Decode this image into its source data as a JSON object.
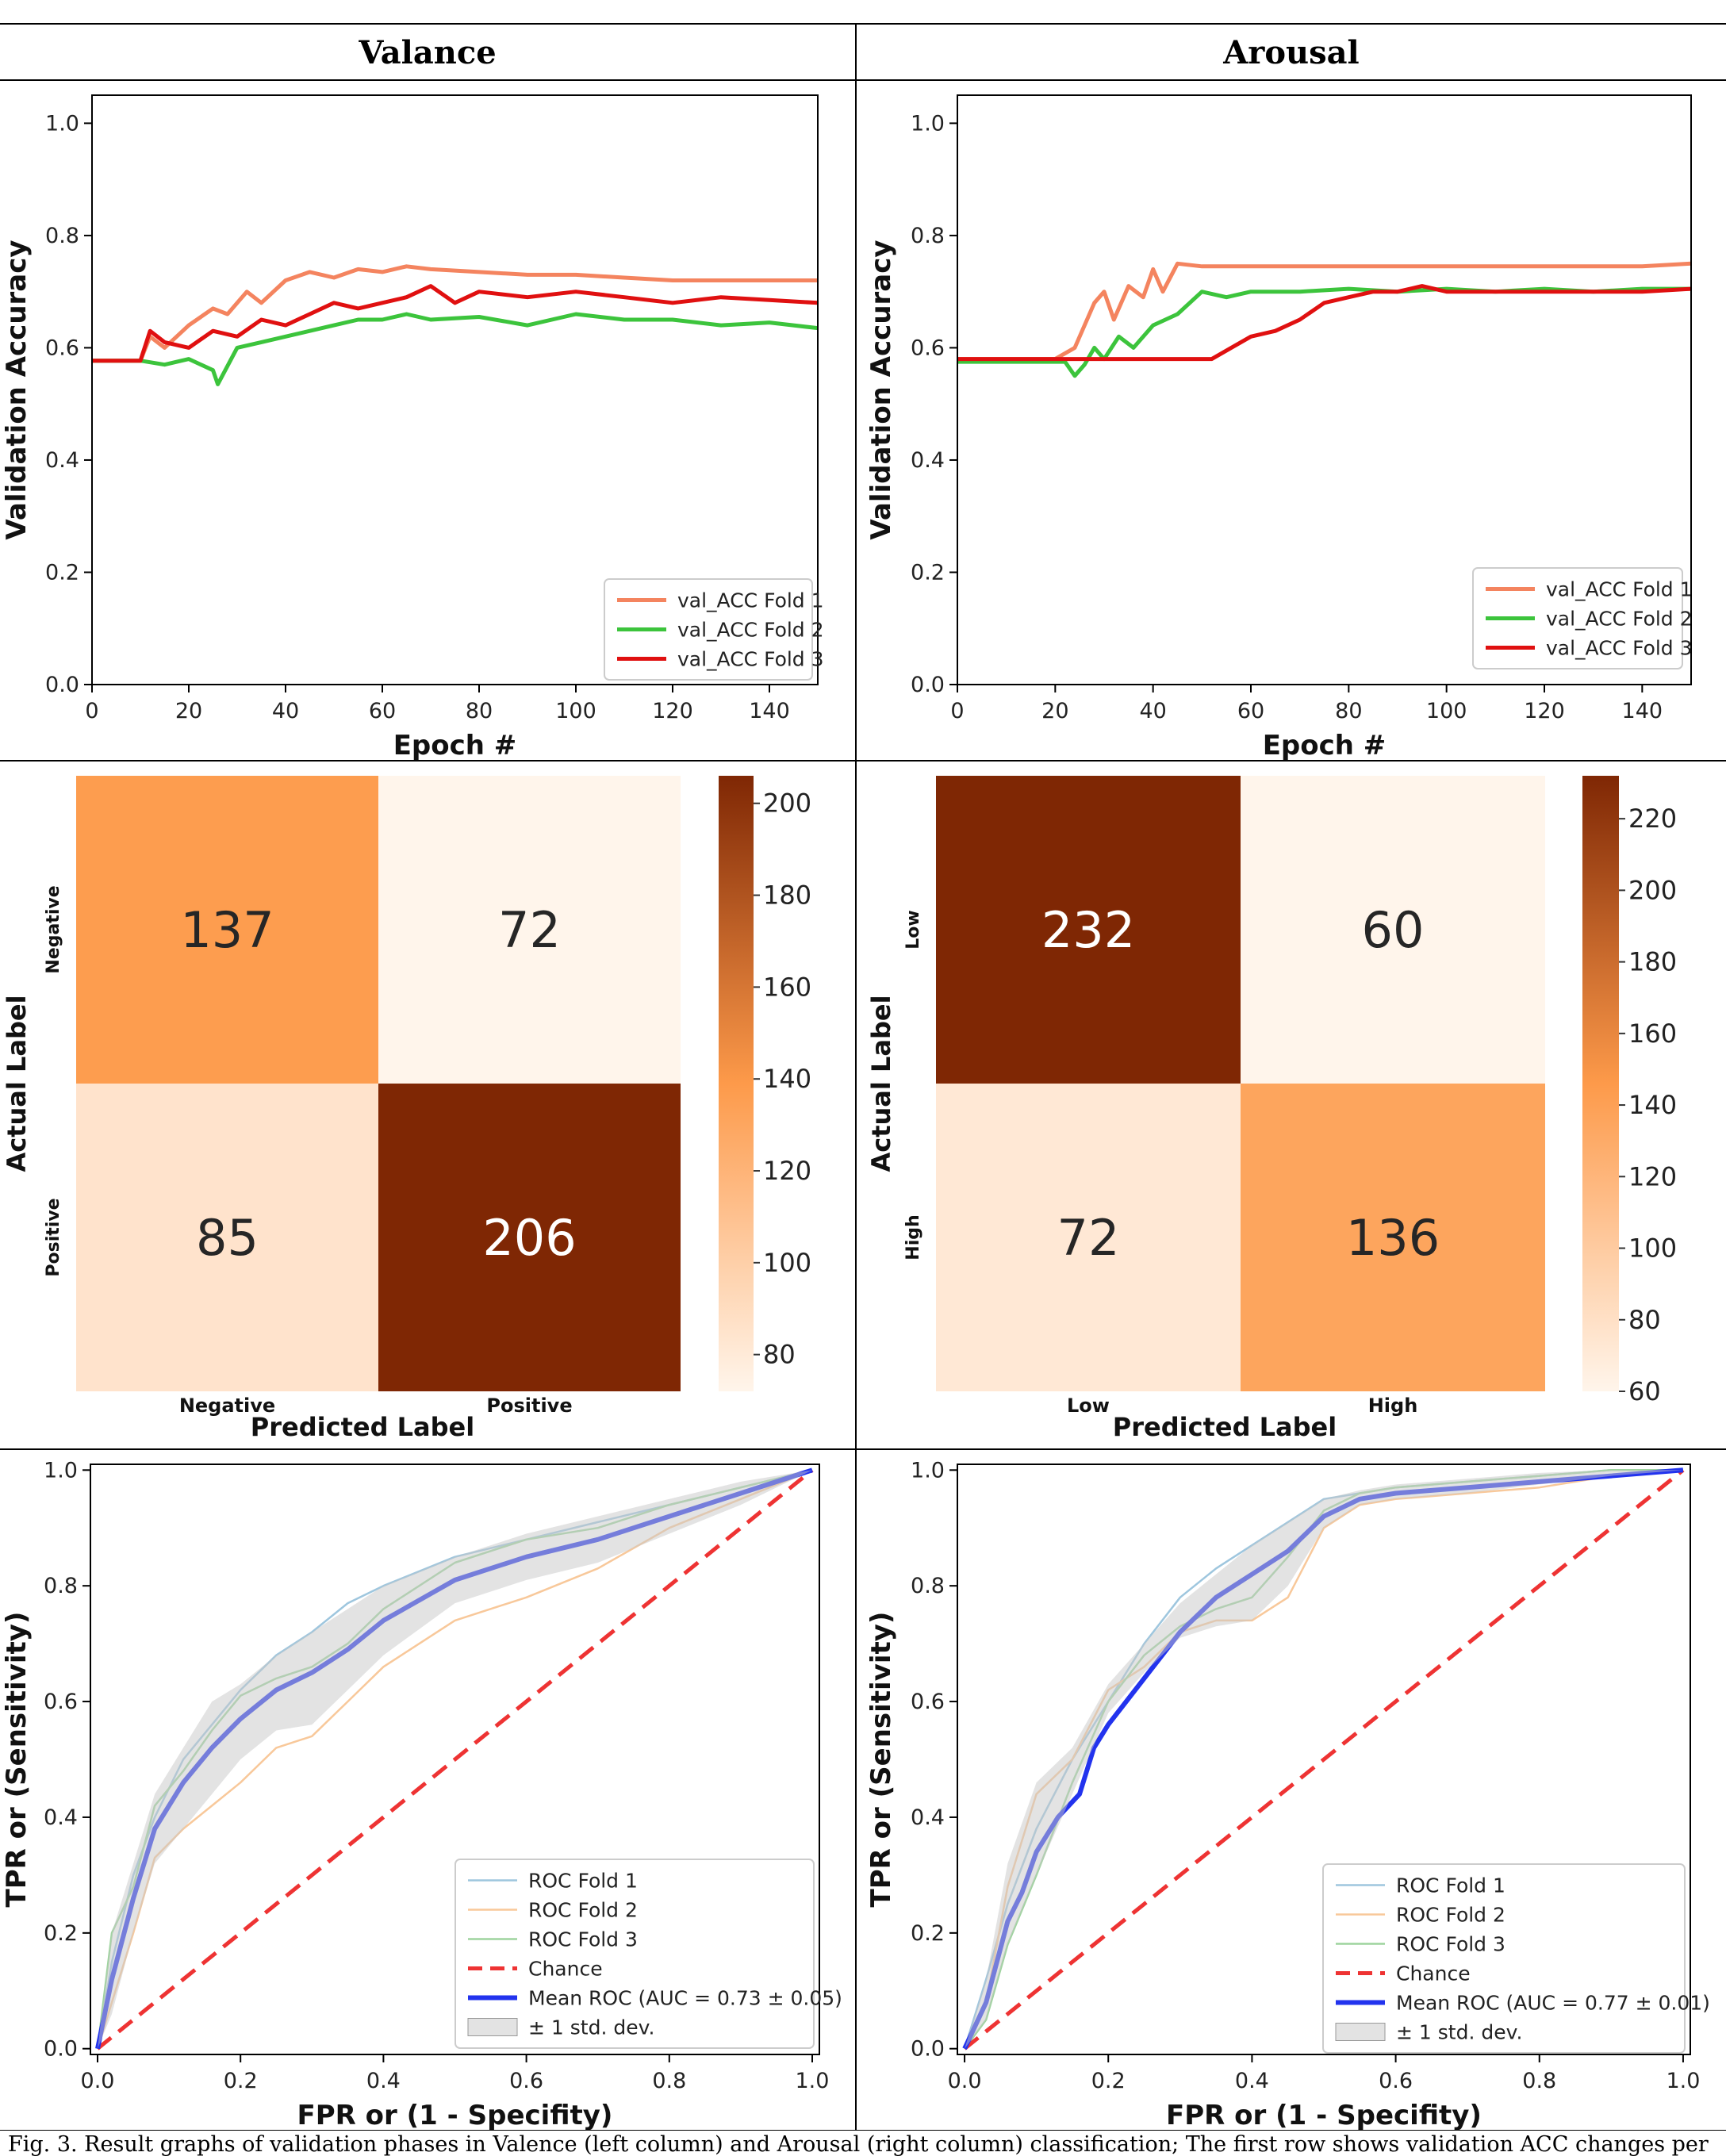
{
  "headers": {
    "left": "Valance",
    "right": "Arousal"
  },
  "caption": "Fig. 3.  Result graphs of validation phases in Valence (left column) and Arousal (right column) classification; The first row shows validation ACC changes per",
  "colors": {
    "fold1": "#f4845f",
    "fold2": "#3cc43c",
    "fold3": "#e01010",
    "cm_low": "#fff5eb",
    "cm_mid": "#fd9a4a",
    "cm_high": "#7f2704",
    "roc_fold1": "#9ec6de",
    "roc_fold2": "#f8c89a",
    "roc_fold3": "#9ed49e",
    "chance": "#ee3333",
    "mean_roc": "#2233ee",
    "band": "#c8c8c8"
  },
  "chart_data": [
    {
      "id": "valence-acc",
      "type": "line",
      "ylabel": "Validation Accuracy",
      "xlabel": "Epoch #",
      "xlim": [
        0,
        150
      ],
      "ylim": [
        0.0,
        1.05
      ],
      "xticks": [
        0,
        20,
        40,
        60,
        80,
        100,
        120,
        140
      ],
      "yticks": [
        0.0,
        0.2,
        0.4,
        0.6,
        0.8,
        1.0
      ],
      "legend_position": "lower right",
      "series": [
        {
          "name": "val_ACC Fold 1",
          "color_key": "fold1",
          "x": [
            0,
            10,
            12,
            15,
            20,
            25,
            28,
            32,
            35,
            40,
            45,
            50,
            55,
            60,
            65,
            70,
            80,
            90,
            100,
            110,
            120,
            130,
            140,
            150
          ],
          "y": [
            0.577,
            0.577,
            0.62,
            0.6,
            0.64,
            0.67,
            0.66,
            0.7,
            0.68,
            0.72,
            0.735,
            0.725,
            0.74,
            0.735,
            0.745,
            0.74,
            0.735,
            0.73,
            0.73,
            0.725,
            0.72,
            0.72,
            0.72,
            0.72
          ]
        },
        {
          "name": "val_ACC Fold 2",
          "color_key": "fold2",
          "x": [
            0,
            10,
            15,
            20,
            25,
            26,
            30,
            35,
            40,
            45,
            50,
            55,
            60,
            65,
            70,
            80,
            90,
            100,
            110,
            120,
            130,
            140,
            150
          ],
          "y": [
            0.577,
            0.577,
            0.57,
            0.58,
            0.56,
            0.535,
            0.6,
            0.61,
            0.62,
            0.63,
            0.64,
            0.65,
            0.65,
            0.66,
            0.65,
            0.655,
            0.64,
            0.66,
            0.65,
            0.65,
            0.64,
            0.645,
            0.635
          ]
        },
        {
          "name": "val_ACC Fold 3",
          "color_key": "fold3",
          "x": [
            0,
            10,
            12,
            15,
            20,
            25,
            30,
            35,
            40,
            45,
            50,
            55,
            60,
            65,
            70,
            75,
            80,
            90,
            100,
            110,
            120,
            130,
            140,
            150
          ],
          "y": [
            0.577,
            0.577,
            0.63,
            0.61,
            0.6,
            0.63,
            0.62,
            0.65,
            0.64,
            0.66,
            0.68,
            0.67,
            0.68,
            0.69,
            0.71,
            0.68,
            0.7,
            0.69,
            0.7,
            0.69,
            0.68,
            0.69,
            0.685,
            0.68
          ]
        }
      ]
    },
    {
      "id": "arousal-acc",
      "type": "line",
      "ylabel": "Validation Accuracy",
      "xlabel": "Epoch #",
      "xlim": [
        0,
        150
      ],
      "ylim": [
        0.0,
        1.05
      ],
      "xticks": [
        0,
        20,
        40,
        60,
        80,
        100,
        120,
        140
      ],
      "yticks": [
        0.0,
        0.2,
        0.4,
        0.6,
        0.8,
        1.0
      ],
      "legend_position": "lower right",
      "series": [
        {
          "name": "val_ACC Fold 1",
          "color_key": "fold1",
          "x": [
            0,
            20,
            24,
            28,
            30,
            32,
            35,
            38,
            40,
            42,
            45,
            50,
            55,
            60,
            70,
            80,
            90,
            100,
            110,
            120,
            130,
            140,
            150
          ],
          "y": [
            0.58,
            0.58,
            0.6,
            0.68,
            0.7,
            0.65,
            0.71,
            0.69,
            0.74,
            0.7,
            0.75,
            0.745,
            0.745,
            0.745,
            0.745,
            0.745,
            0.745,
            0.745,
            0.745,
            0.745,
            0.745,
            0.745,
            0.75
          ]
        },
        {
          "name": "val_ACC Fold 2",
          "color_key": "fold2",
          "x": [
            0,
            22,
            24,
            26,
            28,
            30,
            33,
            36,
            40,
            45,
            50,
            55,
            60,
            70,
            80,
            90,
            100,
            110,
            120,
            130,
            140,
            150
          ],
          "y": [
            0.575,
            0.575,
            0.55,
            0.57,
            0.6,
            0.58,
            0.62,
            0.6,
            0.64,
            0.66,
            0.7,
            0.69,
            0.7,
            0.7,
            0.705,
            0.7,
            0.705,
            0.7,
            0.705,
            0.7,
            0.705,
            0.705
          ]
        },
        {
          "name": "val_ACC Fold 3",
          "color_key": "fold3",
          "x": [
            0,
            52,
            56,
            60,
            65,
            70,
            75,
            80,
            85,
            90,
            95,
            100,
            110,
            120,
            130,
            140,
            150
          ],
          "y": [
            0.58,
            0.58,
            0.6,
            0.62,
            0.63,
            0.65,
            0.68,
            0.69,
            0.7,
            0.7,
            0.71,
            0.7,
            0.7,
            0.7,
            0.7,
            0.7,
            0.705
          ]
        }
      ]
    },
    {
      "id": "valence-cm",
      "type": "heatmap",
      "xlabel": "Predicted Label",
      "ylabel": "Actual Label",
      "x_categories": [
        "Negative",
        "Positive"
      ],
      "y_categories": [
        "Negative",
        "Positive"
      ],
      "values": [
        [
          137,
          72
        ],
        [
          85,
          206
        ]
      ],
      "value_labels": [
        "137",
        "72",
        "85",
        "206"
      ],
      "colorbar_range": [
        72,
        206
      ],
      "colorbar_ticks": [
        "80",
        "100",
        "120",
        "140",
        "160",
        "180",
        "200"
      ],
      "colorbar_tick_values": [
        80,
        100,
        120,
        140,
        160,
        180,
        200
      ]
    },
    {
      "id": "arousal-cm",
      "type": "heatmap",
      "xlabel": "Predicted Label",
      "ylabel": "Actual Label",
      "x_categories": [
        "Low",
        "High"
      ],
      "y_categories": [
        "Low",
        "High"
      ],
      "values": [
        [
          232,
          60
        ],
        [
          72,
          136
        ]
      ],
      "value_labels": [
        "232",
        "60",
        "72",
        "136"
      ],
      "colorbar_range": [
        60,
        232
      ],
      "colorbar_ticks": [
        "60",
        "80",
        "100",
        "120",
        "140",
        "160",
        "180",
        "200",
        "220"
      ],
      "colorbar_tick_values": [
        60,
        80,
        100,
        120,
        140,
        160,
        180,
        200,
        220
      ]
    },
    {
      "id": "valence-roc",
      "type": "line",
      "xlabel": "FPR or (1 - Specifity)",
      "ylabel": "TPR or (Sensitivity)",
      "xlim": [
        -0.01,
        1.01
      ],
      "ylim": [
        -0.01,
        1.01
      ],
      "xticks": [
        0.0,
        0.2,
        0.4,
        0.6,
        0.8,
        1.0
      ],
      "yticks": [
        0.0,
        0.2,
        0.4,
        0.6,
        0.8,
        1.0
      ],
      "legend_position": "lower right",
      "series": [
        {
          "name": "ROC Fold 1",
          "color_key": "roc_fold1",
          "x": [
            0,
            0.02,
            0.05,
            0.08,
            0.12,
            0.16,
            0.2,
            0.25,
            0.3,
            0.35,
            0.4,
            0.5,
            0.6,
            0.7,
            0.8,
            0.9,
            1.0
          ],
          "y": [
            0,
            0.15,
            0.3,
            0.4,
            0.5,
            0.56,
            0.62,
            0.68,
            0.72,
            0.77,
            0.8,
            0.85,
            0.88,
            0.91,
            0.94,
            0.97,
            1.0
          ]
        },
        {
          "name": "ROC Fold 2",
          "color_key": "roc_fold2",
          "x": [
            0,
            0.02,
            0.05,
            0.08,
            0.12,
            0.16,
            0.2,
            0.25,
            0.3,
            0.35,
            0.4,
            0.5,
            0.6,
            0.7,
            0.8,
            0.9,
            1.0
          ],
          "y": [
            0,
            0.08,
            0.2,
            0.33,
            0.38,
            0.42,
            0.46,
            0.52,
            0.54,
            0.6,
            0.66,
            0.74,
            0.78,
            0.83,
            0.9,
            0.95,
            1.0
          ]
        },
        {
          "name": "ROC Fold 3",
          "color_key": "roc_fold3",
          "x": [
            0,
            0.02,
            0.05,
            0.08,
            0.12,
            0.16,
            0.2,
            0.25,
            0.3,
            0.35,
            0.4,
            0.5,
            0.6,
            0.7,
            0.8,
            0.9,
            1.0
          ],
          "y": [
            0,
            0.2,
            0.28,
            0.42,
            0.48,
            0.55,
            0.61,
            0.64,
            0.66,
            0.7,
            0.76,
            0.84,
            0.88,
            0.9,
            0.94,
            0.97,
            1.0
          ]
        },
        {
          "name": "Chance",
          "color_key": "chance",
          "dashed": true,
          "x": [
            0,
            1
          ],
          "y": [
            0,
            1
          ]
        },
        {
          "name": "Mean ROC (AUC = 0.73 ± 0.05)",
          "color_key": "mean_roc",
          "x": [
            0,
            0.02,
            0.05,
            0.08,
            0.12,
            0.16,
            0.2,
            0.25,
            0.3,
            0.35,
            0.4,
            0.5,
            0.6,
            0.7,
            0.8,
            0.9,
            1.0
          ],
          "y": [
            0,
            0.12,
            0.26,
            0.38,
            0.46,
            0.52,
            0.57,
            0.62,
            0.65,
            0.69,
            0.74,
            0.81,
            0.85,
            0.88,
            0.92,
            0.96,
            1.0
          ]
        },
        {
          "name": "± 1 std. dev.",
          "color_key": "band",
          "band": true,
          "x": [
            0,
            0.02,
            0.05,
            0.08,
            0.12,
            0.16,
            0.2,
            0.25,
            0.3,
            0.35,
            0.4,
            0.5,
            0.6,
            0.7,
            0.8,
            0.9,
            1.0
          ],
          "y_upper": [
            0,
            0.2,
            0.32,
            0.44,
            0.52,
            0.6,
            0.63,
            0.68,
            0.72,
            0.76,
            0.8,
            0.85,
            0.89,
            0.92,
            0.95,
            0.98,
            1.0
          ],
          "y_lower": [
            0,
            0.06,
            0.2,
            0.32,
            0.38,
            0.44,
            0.5,
            0.55,
            0.56,
            0.62,
            0.68,
            0.77,
            0.81,
            0.84,
            0.89,
            0.94,
            1.0
          ]
        }
      ]
    },
    {
      "id": "arousal-roc",
      "type": "line",
      "xlabel": "FPR or (1 - Specifity)",
      "ylabel": "TPR or (Sensitivity)",
      "xlim": [
        -0.01,
        1.01
      ],
      "ylim": [
        -0.01,
        1.01
      ],
      "xticks": [
        0.0,
        0.2,
        0.4,
        0.6,
        0.8,
        1.0
      ],
      "yticks": [
        0.0,
        0.2,
        0.4,
        0.6,
        0.8,
        1.0
      ],
      "legend_position": "lower right",
      "series": [
        {
          "name": "ROC Fold 1",
          "color_key": "roc_fold1",
          "x": [
            0,
            0.03,
            0.06,
            0.1,
            0.15,
            0.2,
            0.25,
            0.3,
            0.35,
            0.4,
            0.45,
            0.5,
            0.55,
            0.6,
            0.7,
            0.8,
            0.9,
            1.0
          ],
          "y": [
            0,
            0.12,
            0.25,
            0.38,
            0.5,
            0.6,
            0.7,
            0.78,
            0.83,
            0.87,
            0.91,
            0.95,
            0.96,
            0.97,
            0.98,
            0.99,
            1.0,
            1.0
          ]
        },
        {
          "name": "ROC Fold 2",
          "color_key": "roc_fold2",
          "x": [
            0,
            0.03,
            0.06,
            0.1,
            0.15,
            0.2,
            0.25,
            0.3,
            0.35,
            0.4,
            0.45,
            0.5,
            0.55,
            0.6,
            0.7,
            0.8,
            0.9,
            1.0
          ],
          "y": [
            0,
            0.08,
            0.28,
            0.44,
            0.5,
            0.62,
            0.66,
            0.72,
            0.74,
            0.74,
            0.78,
            0.9,
            0.94,
            0.95,
            0.96,
            0.97,
            0.99,
            1.0
          ]
        },
        {
          "name": "ROC Fold 3",
          "color_key": "roc_fold3",
          "x": [
            0,
            0.03,
            0.06,
            0.1,
            0.15,
            0.2,
            0.25,
            0.3,
            0.35,
            0.4,
            0.45,
            0.5,
            0.55,
            0.6,
            0.7,
            0.8,
            0.9,
            1.0
          ],
          "y": [
            0,
            0.05,
            0.18,
            0.3,
            0.46,
            0.6,
            0.68,
            0.73,
            0.76,
            0.78,
            0.85,
            0.93,
            0.96,
            0.97,
            0.98,
            0.99,
            1.0,
            1.0
          ]
        },
        {
          "name": "Chance",
          "color_key": "chance",
          "dashed": true,
          "x": [
            0,
            1
          ],
          "y": [
            0,
            1
          ]
        },
        {
          "name": "Mean ROC (AUC = 0.77 ± 0.01)",
          "color_key": "mean_roc",
          "x": [
            0,
            0.03,
            0.06,
            0.08,
            0.1,
            0.13,
            0.16,
            0.18,
            0.2,
            0.25,
            0.3,
            0.35,
            0.4,
            0.45,
            0.5,
            0.55,
            0.6,
            0.7,
            0.8,
            0.9,
            1.0
          ],
          "y": [
            0,
            0.08,
            0.22,
            0.27,
            0.34,
            0.4,
            0.44,
            0.52,
            0.56,
            0.64,
            0.72,
            0.78,
            0.82,
            0.86,
            0.92,
            0.95,
            0.96,
            0.97,
            0.98,
            0.99,
            1.0
          ]
        },
        {
          "name": "± 1 std. dev.",
          "color_key": "band",
          "band": true,
          "x": [
            0,
            0.03,
            0.06,
            0.1,
            0.15,
            0.2,
            0.25,
            0.3,
            0.35,
            0.4,
            0.45,
            0.5,
            0.55,
            0.6,
            0.7,
            0.8,
            0.9,
            1.0
          ],
          "y_upper": [
            0,
            0.12,
            0.32,
            0.46,
            0.52,
            0.63,
            0.7,
            0.77,
            0.82,
            0.87,
            0.91,
            0.95,
            0.965,
            0.975,
            0.985,
            0.995,
            1.0,
            1.0
          ],
          "y_lower": [
            0,
            0.05,
            0.18,
            0.3,
            0.44,
            0.58,
            0.65,
            0.71,
            0.73,
            0.74,
            0.8,
            0.9,
            0.94,
            0.95,
            0.96,
            0.975,
            0.99,
            1.0
          ]
        }
      ]
    }
  ]
}
